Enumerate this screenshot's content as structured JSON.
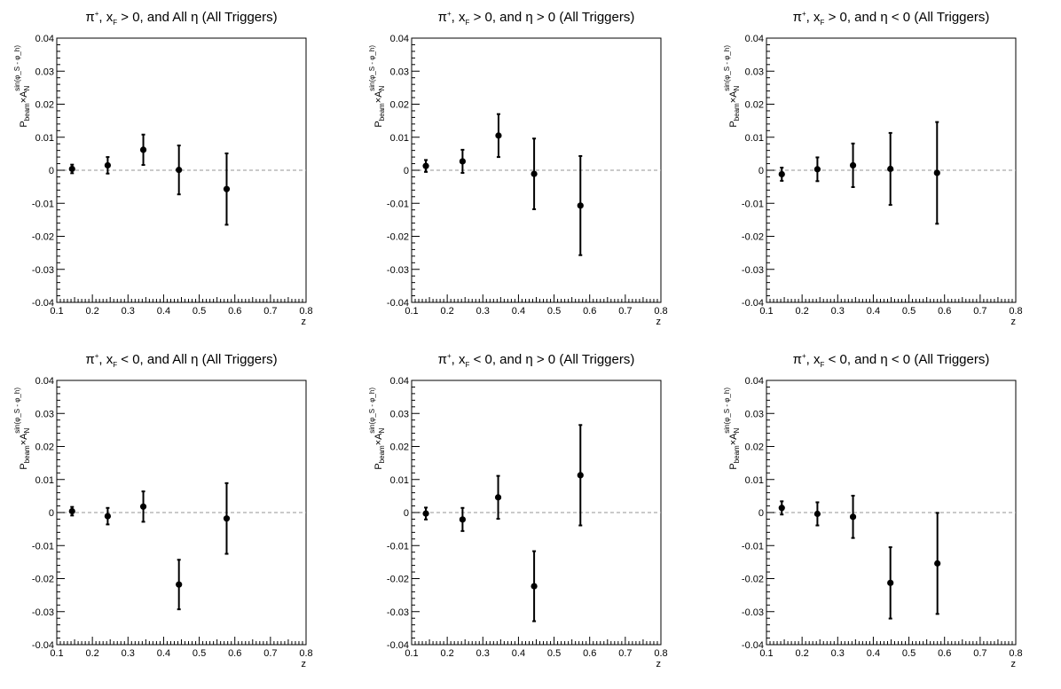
{
  "chart_data": [
    {
      "type": "scatter",
      "title": "π⁺, x_F > 0, and All η (All Triggers)",
      "title_parts": {
        "lead": "π",
        "lead_sup": "+",
        "x": ", x",
        "x_sub": "F",
        "rest": " > 0, and All η (All Triggers)"
      },
      "xlabel": "z",
      "ylabel_parts": {
        "p": "P",
        "p_sub": "beam",
        "times": "×A",
        "a_sub": "N",
        "a_sup": "sin(φ_S - φ_h)"
      },
      "xlim": [
        0.1,
        0.8
      ],
      "ylim": [
        -0.04,
        0.04
      ],
      "xticks": [
        "0.1",
        "0.2",
        "0.3",
        "0.4",
        "0.5",
        "0.6",
        "0.7",
        "0.8"
      ],
      "yticks": [
        "-0.04",
        "-0.03",
        "-0.02",
        "-0.01",
        "0",
        "0.01",
        "0.02",
        "0.03",
        "0.04"
      ],
      "reference_line": 0,
      "points": [
        {
          "x": 0.143,
          "y": 0.0004,
          "err": 0.0013
        },
        {
          "x": 0.243,
          "y": 0.0015,
          "err": 0.0025
        },
        {
          "x": 0.343,
          "y": 0.0062,
          "err": 0.0046
        },
        {
          "x": 0.443,
          "y": 0.0001,
          "err": 0.0074
        },
        {
          "x": 0.577,
          "y": -0.0057,
          "err": 0.0108
        }
      ]
    },
    {
      "type": "scatter",
      "title": "π⁺, x_F > 0, and η > 0 (All Triggers)",
      "title_parts": {
        "lead": "π",
        "lead_sup": "+",
        "x": ", x",
        "x_sub": "F",
        "rest": " > 0, and η > 0 (All Triggers)"
      },
      "xlabel": "z",
      "ylabel_parts": {
        "p": "P",
        "p_sub": "beam",
        "times": "×A",
        "a_sub": "N",
        "a_sup": "sin(φ_S - φ_h)"
      },
      "xlim": [
        0.1,
        0.8
      ],
      "ylim": [
        -0.04,
        0.04
      ],
      "xticks": [
        "0.1",
        "0.2",
        "0.3",
        "0.4",
        "0.5",
        "0.6",
        "0.7",
        "0.8"
      ],
      "yticks": [
        "-0.04",
        "-0.03",
        "-0.02",
        "-0.01",
        "0",
        "0.01",
        "0.02",
        "0.03",
        "0.04"
      ],
      "reference_line": 0,
      "points": [
        {
          "x": 0.14,
          "y": 0.0013,
          "err": 0.0018
        },
        {
          "x": 0.243,
          "y": 0.0027,
          "err": 0.0035
        },
        {
          "x": 0.344,
          "y": 0.0105,
          "err": 0.0065
        },
        {
          "x": 0.444,
          "y": -0.0011,
          "err": 0.0107
        },
        {
          "x": 0.574,
          "y": -0.0107,
          "err": 0.015
        }
      ]
    },
    {
      "type": "scatter",
      "title": "π⁺, x_F > 0, and η < 0 (All Triggers)",
      "title_parts": {
        "lead": "π",
        "lead_sup": "+",
        "x": ", x",
        "x_sub": "F",
        "rest": " > 0, and η < 0 (All Triggers)"
      },
      "xlabel": "z",
      "ylabel_parts": {
        "p": "P",
        "p_sub": "beam",
        "times": "×A",
        "a_sub": "N",
        "a_sup": "sin(φ_S - φ_h)"
      },
      "xlim": [
        0.1,
        0.8
      ],
      "ylim": [
        -0.04,
        0.04
      ],
      "xticks": [
        "0.1",
        "0.2",
        "0.3",
        "0.4",
        "0.5",
        "0.6",
        "0.7",
        "0.8"
      ],
      "yticks": [
        "-0.04",
        "-0.03",
        "-0.02",
        "-0.01",
        "0",
        "0.01",
        "0.02",
        "0.03",
        "0.04"
      ],
      "reference_line": 0,
      "points": [
        {
          "x": 0.143,
          "y": -0.0012,
          "err": 0.002
        },
        {
          "x": 0.243,
          "y": 0.0003,
          "err": 0.0036
        },
        {
          "x": 0.343,
          "y": 0.0015,
          "err": 0.0066
        },
        {
          "x": 0.448,
          "y": 0.0004,
          "err": 0.0109
        },
        {
          "x": 0.579,
          "y": -0.0008,
          "err": 0.0154
        }
      ]
    },
    {
      "type": "scatter",
      "title": "π⁺, x_F < 0, and All η (All Triggers)",
      "title_parts": {
        "lead": "π",
        "lead_sup": "+",
        "x": ", x",
        "x_sub": "F",
        "rest": " < 0, and All η (All Triggers)"
      },
      "xlabel": "z",
      "ylabel_parts": {
        "p": "P",
        "p_sub": "beam",
        "times": "×A",
        "a_sub": "N",
        "a_sup": "sin(φ_S - φ_h)"
      },
      "xlim": [
        0.1,
        0.8
      ],
      "ylim": [
        -0.04,
        0.04
      ],
      "xticks": [
        "0.1",
        "0.2",
        "0.3",
        "0.4",
        "0.5",
        "0.6",
        "0.7",
        "0.8"
      ],
      "yticks": [
        "-0.04",
        "-0.03",
        "-0.02",
        "-0.01",
        "0",
        "0.01",
        "0.02",
        "0.03",
        "0.04"
      ],
      "reference_line": 0,
      "points": [
        {
          "x": 0.143,
          "y": 0.0004,
          "err": 0.0013
        },
        {
          "x": 0.243,
          "y": -0.0011,
          "err": 0.0025
        },
        {
          "x": 0.343,
          "y": 0.0018,
          "err": 0.0046
        },
        {
          "x": 0.443,
          "y": -0.0218,
          "err": 0.0075
        },
        {
          "x": 0.577,
          "y": -0.0018,
          "err": 0.0107
        }
      ]
    },
    {
      "type": "scatter",
      "title": "π⁺, x_F < 0, and η > 0 (All Triggers)",
      "title_parts": {
        "lead": "π",
        "lead_sup": "+",
        "x": ", x",
        "x_sub": "F",
        "rest": " < 0, and η > 0 (All Triggers)"
      },
      "xlabel": "z",
      "ylabel_parts": {
        "p": "P",
        "p_sub": "beam",
        "times": "×A",
        "a_sub": "N",
        "a_sup": "sin(φ_S - φ_h)"
      },
      "xlim": [
        0.1,
        0.8
      ],
      "ylim": [
        -0.04,
        0.04
      ],
      "xticks": [
        "0.1",
        "0.2",
        "0.3",
        "0.4",
        "0.5",
        "0.6",
        "0.7",
        "0.8"
      ],
      "yticks": [
        "-0.04",
        "-0.03",
        "-0.02",
        "-0.01",
        "0",
        "0.01",
        "0.02",
        "0.03",
        "0.04"
      ],
      "reference_line": 0,
      "points": [
        {
          "x": 0.14,
          "y": -0.0003,
          "err": 0.0018
        },
        {
          "x": 0.243,
          "y": -0.0021,
          "err": 0.0035
        },
        {
          "x": 0.343,
          "y": 0.0046,
          "err": 0.0065
        },
        {
          "x": 0.444,
          "y": -0.0223,
          "err": 0.0106
        },
        {
          "x": 0.574,
          "y": 0.0113,
          "err": 0.0152
        }
      ]
    },
    {
      "type": "scatter",
      "title": "π⁺, x_F < 0, and η < 0 (All Triggers)",
      "title_parts": {
        "lead": "π",
        "lead_sup": "+",
        "x": ", x",
        "x_sub": "F",
        "rest": " < 0, and η < 0 (All Triggers)"
      },
      "xlabel": "z",
      "ylabel_parts": {
        "p": "P",
        "p_sub": "beam",
        "times": "×A",
        "a_sub": "N",
        "a_sup": "sin(φ_S - φ_h)"
      },
      "xlim": [
        0.1,
        0.8
      ],
      "ylim": [
        -0.04,
        0.04
      ],
      "xticks": [
        "0.1",
        "0.2",
        "0.3",
        "0.4",
        "0.5",
        "0.6",
        "0.7",
        "0.8"
      ],
      "yticks": [
        "-0.04",
        "-0.03",
        "-0.02",
        "-0.01",
        "0",
        "0.01",
        "0.02",
        "0.03",
        "0.04"
      ],
      "reference_line": 0,
      "points": [
        {
          "x": 0.143,
          "y": 0.0014,
          "err": 0.002
        },
        {
          "x": 0.243,
          "y": -0.0004,
          "err": 0.0035
        },
        {
          "x": 0.343,
          "y": -0.0013,
          "err": 0.0064
        },
        {
          "x": 0.448,
          "y": -0.0213,
          "err": 0.0108
        },
        {
          "x": 0.58,
          "y": -0.0154,
          "err": 0.0153
        }
      ]
    }
  ]
}
